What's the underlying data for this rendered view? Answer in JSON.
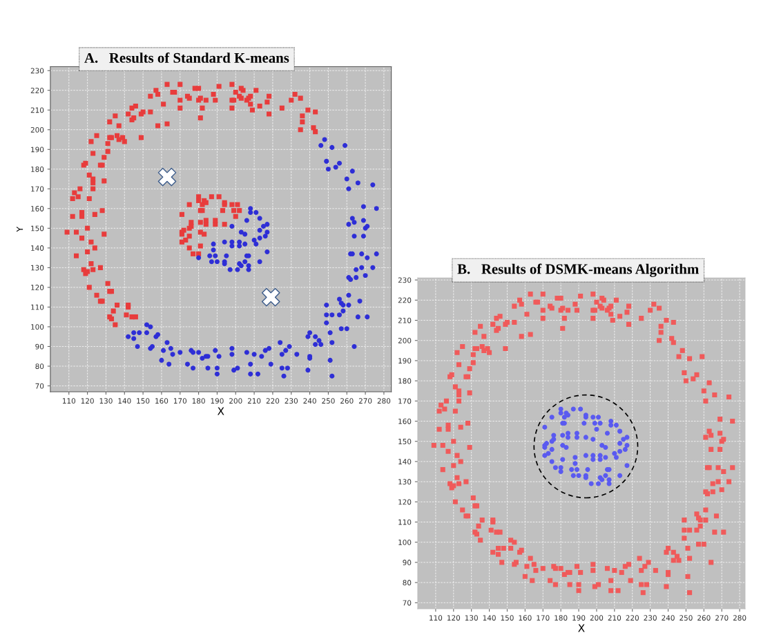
{
  "chart_data": [
    {
      "type": "scatter",
      "title": "A.   Results of Standard K-means",
      "xlabel": "X",
      "ylabel": "Y",
      "xlim": [
        100,
        284
      ],
      "ylim": [
        67,
        232
      ],
      "xticks": [
        110,
        120,
        130,
        140,
        150,
        160,
        170,
        180,
        190,
        200,
        210,
        220,
        230,
        240,
        250,
        260,
        270,
        280
      ],
      "yticks": [
        70,
        80,
        90,
        100,
        110,
        120,
        130,
        140,
        150,
        160,
        170,
        180,
        190,
        200,
        210,
        220,
        230
      ],
      "grid": true,
      "series": [
        {
          "color": "#e83c3c",
          "marker": "square",
          "x": [
            109,
            112,
            113,
            115,
            116,
            112,
            117,
            117,
            114,
            120,
            121,
            121,
            123,
            123,
            123,
            124,
            128,
            129,
            118,
            119,
            127,
            128,
            129,
            129,
            131,
            131,
            123,
            122,
            125,
            132,
            135,
            132,
            133,
            137,
            136,
            137,
            139,
            140,
            142,
            144,
            146,
            144,
            145,
            149,
            150,
            154,
            149,
            154,
            157,
            158,
            158,
            161,
            163,
            163,
            166,
            167,
            170,
            170,
            170,
            174,
            175,
            178,
            180,
            180,
            181,
            181,
            182,
            184,
            188,
            189,
            191,
            198,
            198,
            199,
            198,
            200,
            203,
            204,
            202,
            203,
            206,
            207,
            208,
            208,
            209,
            211,
            213,
            217,
            218,
            218,
            225,
            230,
            232,
            235,
            236,
            236,
            239,
            235,
            242,
            243,
            243,
            117,
            114,
            122,
            124,
            120,
            122,
            118,
            119,
            120,
            123,
            127,
            121,
            125,
            127,
            128,
            131,
            132,
            133,
            136,
            132,
            133,
            134,
            135,
            141,
            142,
            142,
            144,
            146,
            180,
            180,
            187,
            191,
            175,
            182,
            183,
            184,
            194,
            194,
            198,
            201,
            181,
            182,
            193,
            199,
            202,
            171,
            200,
            176,
            176,
            181,
            184,
            184,
            189,
            189,
            194,
            175,
            172,
            171,
            181,
            183,
            171,
            175,
            171,
            173,
            175,
            181,
            177,
            180
          ],
          "values": [
            148,
            165,
            168,
            166,
            170,
            156,
            158,
            156,
            148,
            150,
            165,
            177,
            175,
            173,
            170,
            157,
            159,
            147,
            182,
            183,
            182,
            182,
            174,
            186,
            189,
            193,
            188,
            194,
            197,
            204,
            207,
            196,
            196,
            202,
            197,
            195,
            196,
            194,
            208,
            211,
            212,
            205,
            206,
            208,
            209,
            209,
            196,
            217,
            220,
            218,
            202,
            213,
            223,
            203,
            219,
            219,
            223,
            215,
            211,
            217,
            216,
            221,
            221,
            215,
            216,
            206,
            211,
            215,
            218,
            215,
            222,
            223,
            215,
            215,
            211,
            219,
            221,
            220,
            217,
            216,
            215,
            216,
            217,
            213,
            210,
            220,
            212,
            214,
            217,
            208,
            211,
            215,
            218,
            216,
            207,
            204,
            210,
            200,
            201,
            199,
            209,
            145,
            136,
            143,
            140,
            138,
            132,
            129,
            127,
            128,
            129,
            130,
            120,
            116,
            113,
            113,
            122,
            118,
            118,
            111,
            105,
            104,
            108,
            101,
            106,
            111,
            110,
            105,
            105,
            166,
            164,
            166,
            166,
            162,
            162,
            164,
            163,
            163,
            162,
            162,
            162,
            159,
            159,
            159,
            159,
            159,
            157,
            156,
            153,
            151,
            153,
            154,
            152,
            154,
            152,
            152,
            150,
            149,
            148,
            148,
            147,
            147,
            146,
            143,
            144,
            140,
            141,
            137,
            137
          ]
        },
        {
          "color": "#2e2ed6",
          "marker": "circle",
          "x": [
            246,
            248,
            252,
            259,
            249,
            250,
            254,
            256,
            260,
            263,
            261,
            266,
            274,
            269,
            276,
            263,
            261,
            264,
            269,
            270,
            271,
            142,
            145,
            145,
            148,
            147,
            152,
            154,
            152,
            154,
            155,
            157,
            158,
            160,
            161,
            163,
            164,
            165,
            166,
            170,
            174,
            176,
            177,
            177,
            180,
            182,
            184,
            185,
            185,
            189,
            190,
            190,
            191,
            198,
            198,
            199,
            201,
            206,
            208,
            208,
            210,
            212,
            214,
            216,
            218,
            219,
            224,
            225,
            225,
            226,
            227,
            228,
            229,
            233,
            239,
            239,
            240,
            240,
            240,
            243,
            243,
            245,
            246,
            249,
            249,
            249,
            251,
            251,
            252,
            252,
            252,
            256,
            256,
            257,
            257,
            258,
            258,
            260,
            261,
            261,
            264,
            261,
            262,
            265,
            265,
            262,
            263,
            264,
            266,
            267,
            268,
            268,
            269,
            270,
            271,
            271,
            274,
            276,
            208,
            208,
            211,
            213,
            206,
            198,
            215,
            217,
            213,
            217,
            203,
            205,
            180,
            188,
            188,
            186,
            189,
            187,
            190,
            194,
            198,
            198,
            202,
            202,
            205,
            195,
            194,
            194,
            197,
            201,
            202,
            203,
            205,
            206,
            207,
            207,
            207,
            210,
            211,
            213,
            216,
            217,
            213
          ],
          "values": [
            192,
            195,
            191,
            192,
            184,
            180,
            181,
            183,
            175,
            179,
            170,
            173,
            172,
            161,
            160,
            155,
            152,
            153,
            154,
            150,
            151,
            95,
            94,
            97,
            97,
            90,
            101,
            100,
            97,
            89,
            90,
            95,
            96,
            83,
            88,
            92,
            81,
            89,
            86,
            87,
            81,
            88,
            87,
            79,
            87,
            84,
            85,
            85,
            79,
            88,
            79,
            76,
            85,
            89,
            86,
            78,
            79,
            87,
            81,
            76,
            86,
            76,
            85,
            88,
            89,
            81,
            92,
            86,
            79,
            75,
            88,
            79,
            90,
            86,
            78,
            95,
            97,
            85,
            84,
            95,
            91,
            93,
            91,
            111,
            102,
            106,
            97,
            83,
            106,
            92,
            75,
            114,
            106,
            112,
            99,
            108,
            111,
            99,
            116,
            111,
            90,
            125,
            124,
            125,
            129,
            137,
            137,
            146,
            105,
            113,
            137,
            130,
            146,
            126,
            135,
            105,
            130,
            137,
            160,
            158,
            158,
            155,
            154,
            151,
            151,
            152,
            149,
            148,
            148,
            147,
            135,
            142,
            139,
            136,
            136,
            133,
            133,
            143,
            143,
            141,
            143,
            141,
            142,
            136,
            133,
            132,
            129,
            129,
            132,
            131,
            133,
            136,
            136,
            131,
            129,
            144,
            142,
            145,
            146,
            138,
            133
          ]
        },
        {
          "color": "#ffffff",
          "marker": "cross",
          "x": [
            163,
            219
          ],
          "values": [
            176,
            115
          ]
        }
      ]
    },
    {
      "type": "scatter",
      "title": "B.   Results of DSMK-means Algorithm",
      "xlabel": "X",
      "xlim": [
        100,
        283
      ],
      "ylim": [
        67,
        231
      ],
      "xticks": [
        110,
        120,
        130,
        140,
        150,
        160,
        170,
        180,
        190,
        200,
        210,
        220,
        230,
        240,
        250,
        260,
        270,
        280
      ],
      "yticks": [
        70,
        80,
        90,
        100,
        110,
        120,
        130,
        140,
        150,
        160,
        170,
        180,
        190,
        200,
        210,
        220,
        230
      ],
      "grid": true,
      "series": [
        {
          "color": "#f05a5a",
          "marker": "square",
          "x": [
            109,
            112,
            113,
            115,
            116,
            112,
            117,
            117,
            114,
            120,
            121,
            121,
            123,
            123,
            123,
            124,
            128,
            129,
            118,
            119,
            127,
            128,
            129,
            129,
            131,
            131,
            123,
            122,
            125,
            132,
            135,
            132,
            133,
            137,
            136,
            137,
            139,
            140,
            142,
            144,
            146,
            144,
            145,
            149,
            150,
            154,
            149,
            154,
            157,
            158,
            158,
            161,
            163,
            163,
            166,
            167,
            170,
            170,
            170,
            174,
            175,
            178,
            180,
            180,
            181,
            181,
            182,
            184,
            188,
            189,
            191,
            198,
            198,
            199,
            198,
            200,
            203,
            204,
            202,
            203,
            206,
            207,
            208,
            208,
            209,
            211,
            213,
            217,
            218,
            218,
            225,
            230,
            232,
            235,
            236,
            236,
            239,
            235,
            242,
            243,
            243,
            117,
            114,
            122,
            124,
            120,
            122,
            118,
            119,
            120,
            123,
            127,
            121,
            125,
            127,
            128,
            131,
            132,
            133,
            136,
            132,
            133,
            134,
            135,
            141,
            142,
            142,
            144,
            146,
            246,
            248,
            252,
            259,
            249,
            250,
            254,
            256,
            260,
            263,
            261,
            266,
            274,
            269,
            276,
            263,
            261,
            264,
            269,
            270,
            271,
            142,
            145,
            145,
            148,
            147,
            152,
            154,
            152,
            154,
            155,
            157,
            158,
            160,
            161,
            163,
            164,
            165,
            166,
            170,
            174,
            176,
            177,
            177,
            180,
            182,
            184,
            185,
            185,
            189,
            190,
            190,
            191,
            198,
            198,
            199,
            201,
            206,
            208,
            208,
            210,
            212,
            214,
            216,
            218,
            219,
            224,
            225,
            225,
            226,
            227,
            228,
            229,
            233,
            239,
            239,
            240,
            240,
            240,
            243,
            243,
            245,
            246,
            249,
            249,
            249,
            251,
            251,
            252,
            252,
            252,
            256,
            256,
            257,
            257,
            258,
            258,
            260,
            261,
            261,
            264,
            261,
            262,
            265,
            265,
            262,
            263,
            264,
            266,
            267,
            268,
            268,
            269,
            270,
            271,
            271,
            274,
            276
          ],
          "values": [
            148,
            165,
            168,
            166,
            170,
            156,
            158,
            156,
            148,
            150,
            165,
            177,
            175,
            173,
            170,
            157,
            159,
            147,
            182,
            183,
            182,
            182,
            174,
            186,
            189,
            193,
            188,
            194,
            197,
            204,
            207,
            196,
            196,
            202,
            197,
            195,
            196,
            194,
            208,
            211,
            212,
            205,
            206,
            208,
            209,
            209,
            196,
            217,
            220,
            218,
            202,
            213,
            223,
            203,
            219,
            219,
            223,
            215,
            211,
            217,
            216,
            221,
            221,
            215,
            216,
            206,
            211,
            215,
            218,
            215,
            222,
            223,
            215,
            215,
            211,
            219,
            221,
            220,
            217,
            216,
            215,
            216,
            217,
            213,
            210,
            220,
            212,
            214,
            217,
            208,
            211,
            215,
            218,
            216,
            207,
            204,
            210,
            200,
            201,
            199,
            209,
            145,
            136,
            143,
            140,
            138,
            132,
            129,
            127,
            128,
            129,
            130,
            120,
            116,
            113,
            113,
            122,
            118,
            118,
            111,
            105,
            104,
            108,
            101,
            106,
            111,
            110,
            105,
            105,
            192,
            195,
            191,
            192,
            184,
            180,
            181,
            183,
            175,
            179,
            170,
            173,
            172,
            161,
            160,
            155,
            152,
            153,
            154,
            150,
            151,
            95,
            94,
            97,
            97,
            90,
            101,
            100,
            97,
            89,
            90,
            95,
            96,
            83,
            88,
            92,
            81,
            89,
            86,
            87,
            81,
            88,
            87,
            79,
            87,
            84,
            85,
            85,
            79,
            88,
            79,
            76,
            85,
            89,
            86,
            78,
            79,
            87,
            81,
            76,
            86,
            76,
            85,
            88,
            89,
            81,
            92,
            86,
            79,
            75,
            88,
            79,
            90,
            86,
            78,
            95,
            97,
            85,
            84,
            95,
            91,
            93,
            91,
            111,
            102,
            106,
            97,
            83,
            106,
            92,
            75,
            114,
            106,
            112,
            99,
            108,
            111,
            99,
            116,
            111,
            90,
            125,
            124,
            125,
            129,
            137,
            137,
            146,
            105,
            113,
            137,
            130,
            146,
            126,
            135,
            105,
            130,
            137
          ]
        },
        {
          "color": "#5a5af0",
          "marker": "circle",
          "x": [
            180,
            180,
            187,
            191,
            175,
            182,
            183,
            184,
            194,
            194,
            198,
            201,
            181,
            182,
            193,
            199,
            202,
            171,
            200,
            176,
            176,
            181,
            184,
            184,
            189,
            189,
            194,
            175,
            172,
            171,
            181,
            183,
            171,
            175,
            171,
            173,
            175,
            181,
            177,
            180,
            208,
            208,
            211,
            213,
            206,
            198,
            215,
            217,
            213,
            217,
            203,
            205,
            180,
            188,
            188,
            186,
            189,
            187,
            190,
            194,
            198,
            198,
            202,
            202,
            205,
            195,
            194,
            194,
            197,
            201,
            202,
            203,
            205,
            206,
            207,
            207,
            207,
            210,
            211,
            213,
            216,
            217,
            213
          ],
          "values": [
            166,
            164,
            166,
            166,
            162,
            162,
            164,
            163,
            163,
            162,
            162,
            162,
            159,
            159,
            159,
            159,
            159,
            157,
            156,
            153,
            151,
            153,
            154,
            152,
            154,
            152,
            152,
            150,
            149,
            148,
            148,
            147,
            147,
            146,
            143,
            144,
            140,
            141,
            137,
            137,
            160,
            158,
            158,
            155,
            154,
            151,
            151,
            152,
            149,
            148,
            148,
            147,
            135,
            142,
            139,
            136,
            136,
            133,
            133,
            143,
            143,
            141,
            143,
            141,
            142,
            136,
            133,
            132,
            129,
            129,
            132,
            131,
            133,
            136,
            136,
            131,
            129,
            144,
            142,
            145,
            146,
            138,
            133
          ]
        }
      ]
    }
  ]
}
